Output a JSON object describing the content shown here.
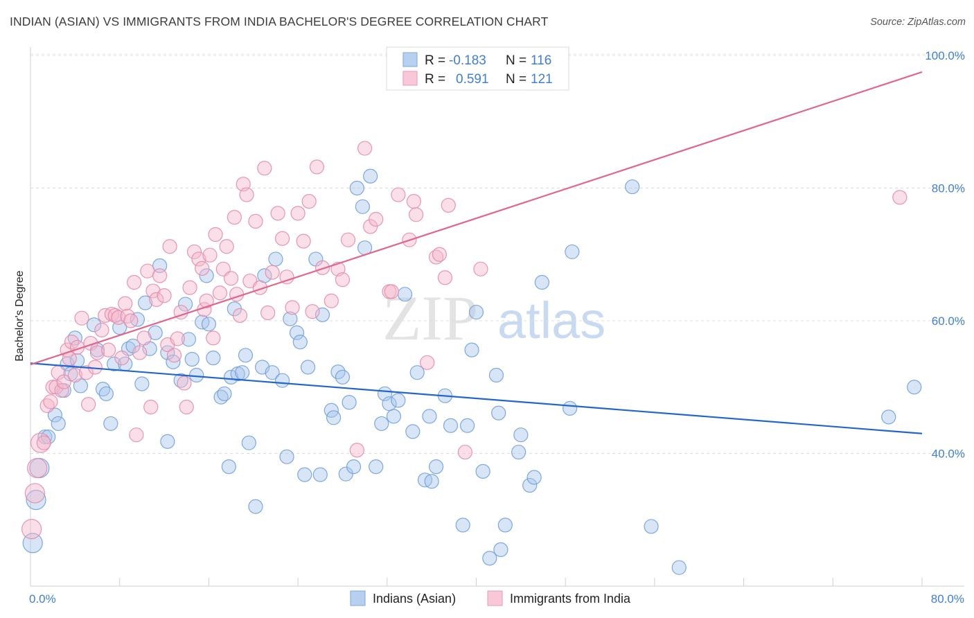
{
  "title": "INDIAN (ASIAN) VS IMMIGRANTS FROM INDIA BACHELOR'S DEGREE CORRELATION CHART",
  "source": "Source: ZipAtlas.com",
  "watermark": {
    "zip": "ZIP",
    "atlas": "atlas"
  },
  "legend": {
    "r_label": "R =",
    "n_label": "N =",
    "rows": [
      {
        "r": "-0.183",
        "n": "116"
      },
      {
        "r": "0.591",
        "n": "121"
      }
    ]
  },
  "colors": {
    "blue": "#2266cc",
    "blue_fill": "#a9c6ec",
    "pink": "#e06690",
    "pink_fill": "#f5b8cc",
    "label": "#3f7fd1"
  },
  "chart_data": {
    "type": "scatter",
    "xlabel": "",
    "ylabel": "Bachelor's Degree",
    "xlim": [
      0,
      80
    ],
    "ylim": [
      20,
      100
    ],
    "x_tick_labels": [
      "0.0%",
      "80.0%"
    ],
    "y_tick_labels": [
      "40.0%",
      "60.0%",
      "80.0%",
      "100.0%"
    ],
    "y_ticks": [
      40,
      60,
      80,
      100
    ],
    "grid": true,
    "legend_position": "top-center",
    "series": [
      {
        "name": "Indians (Asian)",
        "trend": {
          "x": [
            0,
            80
          ],
          "y": [
            53.6,
            43.0
          ]
        },
        "points": [
          [
            0.2,
            26.5
          ],
          [
            0.5,
            33
          ],
          [
            0.8,
            37.8
          ],
          [
            1.3,
            42.5
          ],
          [
            1.6,
            42.5
          ],
          [
            2.2,
            45.8
          ],
          [
            2.5,
            44.5
          ],
          [
            3,
            49.5
          ],
          [
            3.3,
            53.5
          ],
          [
            3.6,
            52
          ],
          [
            4,
            57.4
          ],
          [
            4.2,
            54
          ],
          [
            4.5,
            50.2
          ],
          [
            5.7,
            59.4
          ],
          [
            6,
            55.6
          ],
          [
            6.5,
            49.7
          ],
          [
            6.8,
            49
          ],
          [
            7.2,
            44.5
          ],
          [
            7.5,
            53.5
          ],
          [
            8,
            59
          ],
          [
            8.5,
            53.5
          ],
          [
            8.8,
            55.8
          ],
          [
            9.2,
            56.2
          ],
          [
            9.6,
            60.2
          ],
          [
            10,
            50.5
          ],
          [
            10.3,
            62.7
          ],
          [
            10.7,
            55.8
          ],
          [
            11.2,
            58.2
          ],
          [
            11.6,
            68.3
          ],
          [
            12.3,
            55.2
          ],
          [
            12.3,
            41.8
          ],
          [
            12.8,
            53.8
          ],
          [
            13.5,
            51
          ],
          [
            13.9,
            62.5
          ],
          [
            14.2,
            57.2
          ],
          [
            14.5,
            54.2
          ],
          [
            14.9,
            51.8
          ],
          [
            15.4,
            59.8
          ],
          [
            15.8,
            66.8
          ],
          [
            16,
            59.5
          ],
          [
            16.4,
            54.4
          ],
          [
            17.1,
            48.5
          ],
          [
            17.4,
            49
          ],
          [
            17.8,
            38
          ],
          [
            18,
            51.5
          ],
          [
            18.3,
            61.8
          ],
          [
            18.6,
            52
          ],
          [
            19,
            52.2
          ],
          [
            19.3,
            54.8
          ],
          [
            19.6,
            41.6
          ],
          [
            20.2,
            32
          ],
          [
            20.8,
            53
          ],
          [
            21,
            66.8
          ],
          [
            21.7,
            52.2
          ],
          [
            22,
            69.3
          ],
          [
            22.6,
            51
          ],
          [
            23,
            39.5
          ],
          [
            23.3,
            60.3
          ],
          [
            23.9,
            58.2
          ],
          [
            24.2,
            56.8
          ],
          [
            24.6,
            36.8
          ],
          [
            24.9,
            53
          ],
          [
            25.6,
            69.3
          ],
          [
            26,
            36.8
          ],
          [
            26.2,
            60.9
          ],
          [
            27,
            46.5
          ],
          [
            27.2,
            45.4
          ],
          [
            27.6,
            52.3
          ],
          [
            28,
            51.5
          ],
          [
            28.3,
            36.9
          ],
          [
            28.6,
            47.7
          ],
          [
            29,
            38
          ],
          [
            29.3,
            80
          ],
          [
            29.8,
            77.2
          ],
          [
            30,
            71
          ],
          [
            30.5,
            81.8
          ],
          [
            31,
            38
          ],
          [
            31.5,
            44.5
          ],
          [
            31.8,
            49
          ],
          [
            32.2,
            47.5
          ],
          [
            32.6,
            45.6
          ],
          [
            33,
            48
          ],
          [
            33.6,
            64
          ],
          [
            34.3,
            43.3
          ],
          [
            34.7,
            52.2
          ],
          [
            35.4,
            36
          ],
          [
            35.8,
            45.6
          ],
          [
            36,
            35.8
          ],
          [
            36.4,
            38
          ],
          [
            37.2,
            48.7
          ],
          [
            37.7,
            44.2
          ],
          [
            38.8,
            29.2
          ],
          [
            39.2,
            44.2
          ],
          [
            39.6,
            55.6
          ],
          [
            40,
            61.3
          ],
          [
            40.6,
            37.3
          ],
          [
            41.2,
            24.2
          ],
          [
            41.8,
            51.8
          ],
          [
            42,
            46.1
          ],
          [
            42.2,
            25.5
          ],
          [
            42.6,
            29.2
          ],
          [
            43.8,
            40.2
          ],
          [
            44,
            42.8
          ],
          [
            44.8,
            35.2
          ],
          [
            45.2,
            36.4
          ],
          [
            45.9,
            65.8
          ],
          [
            48.4,
            46.8
          ],
          [
            48.6,
            70.4
          ],
          [
            54,
            80.2
          ],
          [
            55.7,
            29
          ],
          [
            58.2,
            22.8
          ],
          [
            77,
            45.5
          ],
          [
            79.3,
            50
          ]
        ]
      },
      {
        "name": "Immigrants from India",
        "trend": {
          "x": [
            0,
            80
          ],
          "y": [
            53.4,
            97.5
          ]
        },
        "points": [
          [
            0.1,
            28.6
          ],
          [
            0.4,
            34
          ],
          [
            0.6,
            37.8
          ],
          [
            0.9,
            41.6
          ],
          [
            1.2,
            41.6
          ],
          [
            1.5,
            47.2
          ],
          [
            1.8,
            47.8
          ],
          [
            2,
            50
          ],
          [
            2.3,
            50
          ],
          [
            2.5,
            52.2
          ],
          [
            2.8,
            49.5
          ],
          [
            3,
            50.8
          ],
          [
            3.3,
            55.6
          ],
          [
            3.5,
            54.3
          ],
          [
            3.7,
            56.8
          ],
          [
            4,
            51.8
          ],
          [
            4.2,
            56
          ],
          [
            4.6,
            60.4
          ],
          [
            5,
            52.2
          ],
          [
            5.2,
            47.4
          ],
          [
            5.4,
            56.6
          ],
          [
            5.8,
            53
          ],
          [
            6,
            55.2
          ],
          [
            6.4,
            58.6
          ],
          [
            6.7,
            60.8
          ],
          [
            7,
            55.6
          ],
          [
            7.3,
            61
          ],
          [
            7.6,
            60.8
          ],
          [
            7.9,
            60.5
          ],
          [
            8.2,
            54.4
          ],
          [
            8.5,
            62.6
          ],
          [
            8.7,
            60.7
          ],
          [
            9,
            60
          ],
          [
            9.3,
            65.8
          ],
          [
            9.5,
            42.8
          ],
          [
            9.8,
            55.2
          ],
          [
            10.2,
            57.4
          ],
          [
            10.5,
            67.5
          ],
          [
            10.8,
            47
          ],
          [
            11,
            64.5
          ],
          [
            11.3,
            63.2
          ],
          [
            11.6,
            66.8
          ],
          [
            12,
            63.8
          ],
          [
            12.3,
            56.4
          ],
          [
            12.5,
            71.2
          ],
          [
            12.9,
            54.8
          ],
          [
            13.2,
            57.3
          ],
          [
            13.5,
            61.3
          ],
          [
            13.8,
            50.6
          ],
          [
            14,
            47
          ],
          [
            14.3,
            65
          ],
          [
            14.7,
            70.4
          ],
          [
            15.1,
            69.3
          ],
          [
            15.4,
            67.9
          ],
          [
            15.6,
            61.7
          ],
          [
            15.8,
            63
          ],
          [
            16.1,
            69.9
          ],
          [
            16.4,
            57.4
          ],
          [
            16.6,
            73
          ],
          [
            17,
            64.2
          ],
          [
            17.3,
            67.8
          ],
          [
            17.6,
            71.2
          ],
          [
            18,
            66.4
          ],
          [
            18.3,
            75.6
          ],
          [
            18.5,
            64
          ],
          [
            18.8,
            60.8
          ],
          [
            19.1,
            80.6
          ],
          [
            19.4,
            79
          ],
          [
            19.7,
            66
          ],
          [
            20.2,
            75
          ],
          [
            20.6,
            65
          ],
          [
            21,
            83
          ],
          [
            21.3,
            61.2
          ],
          [
            21.7,
            67.3
          ],
          [
            22.2,
            76.2
          ],
          [
            22.6,
            72.4
          ],
          [
            23,
            66.6
          ],
          [
            23.5,
            62
          ],
          [
            24,
            76.2
          ],
          [
            24.5,
            72
          ],
          [
            25,
            78
          ],
          [
            25.3,
            61.4
          ],
          [
            25.7,
            83.2
          ],
          [
            26.2,
            68
          ],
          [
            27,
            63
          ],
          [
            27.6,
            67.8
          ],
          [
            28,
            66.2
          ],
          [
            28.5,
            72.2
          ],
          [
            29.3,
            40.5
          ],
          [
            30,
            86
          ],
          [
            30.5,
            74.2
          ],
          [
            31,
            75.3
          ],
          [
            32.2,
            64.4
          ],
          [
            32.4,
            64.4
          ],
          [
            33,
            79
          ],
          [
            34,
            72.2
          ],
          [
            34.4,
            78
          ],
          [
            34.6,
            76
          ],
          [
            35.6,
            53.7
          ],
          [
            36.4,
            69.6
          ],
          [
            36.7,
            70
          ],
          [
            37.2,
            66.5
          ],
          [
            37.5,
            77.4
          ],
          [
            39,
            40.2
          ],
          [
            40.4,
            67.8
          ],
          [
            78,
            78.6
          ]
        ]
      }
    ]
  },
  "bottom_legend": [
    "Indians (Asian)",
    "Immigrants from India"
  ]
}
